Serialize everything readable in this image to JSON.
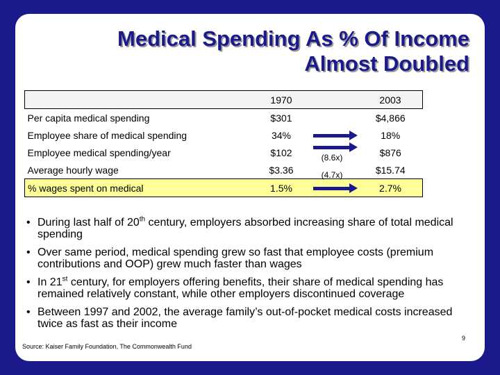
{
  "title": {
    "line1": "Medical Spending As % Of Income",
    "line2": "Almost Doubled"
  },
  "table": {
    "col1_header": "1970",
    "col2_header": "2003",
    "rows": [
      {
        "label": "Per capita medical spending",
        "v1": "$301",
        "mult": "",
        "v2": "$4,866",
        "arrow": false
      },
      {
        "label": "Employee share of medical spending",
        "v1": "34%",
        "mult": "",
        "v2": "18%",
        "arrow": true
      },
      {
        "label": "Employee medical spending/year",
        "v1": "$102",
        "mult": "(8.6x)",
        "v2": "$876",
        "arrow": true
      },
      {
        "label": "Average hourly wage",
        "v1": "$3.36",
        "mult": "(4.7x)",
        "v2": "$15.74",
        "arrow": false
      },
      {
        "label": "% wages spent on medical",
        "v1": "1.5%",
        "mult": "",
        "v2": "2.7%",
        "arrow": true
      }
    ]
  },
  "bullets": {
    "b1_pre": "During last half of 20",
    "b1_sup": "th",
    "b1_post": " century, employers absorbed increasing share of total medical spending",
    "b2": "Over same period, medical spending grew so fast that employee costs (premium contributions and OOP) grew much faster than wages",
    "b3_pre": "In 21",
    "b3_sup": "st",
    "b3_post": " century, for employers offering benefits, their share of medical spending has remained relatively constant, while other employers discontinued coverage",
    "b4": "Between 1997 and 2002, the average family’s out-of-pocket medical costs increased twice as fast as their income"
  },
  "source": "Source: Kaiser Family Foundation, The Commonwealth Fund",
  "page_number": "9",
  "colors": {
    "accent": "#1a1a8c",
    "highlight": "#ffff99"
  }
}
